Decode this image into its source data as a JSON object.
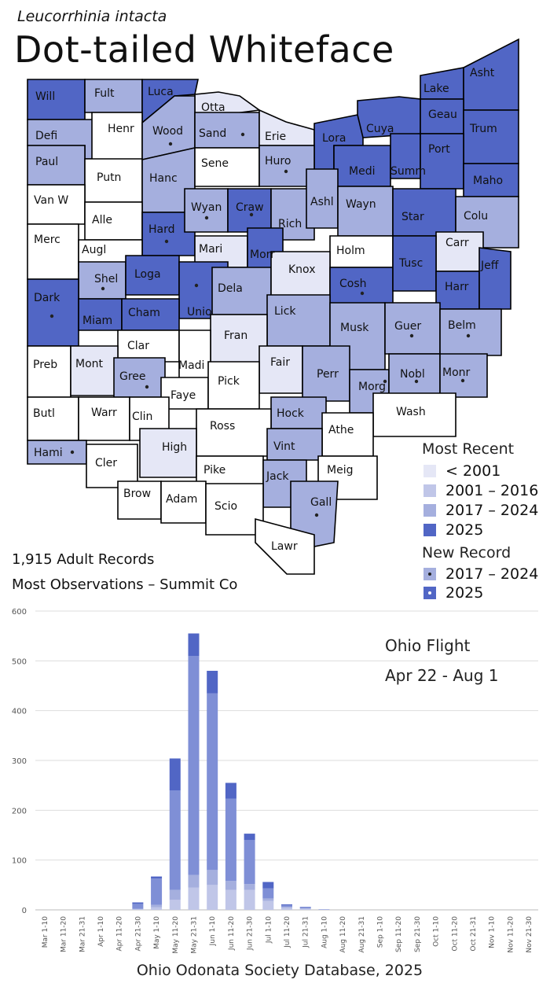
{
  "header": {
    "scientific_name": "Leucorrhinia intacta",
    "common_name": "Dot-tailed Whiteface"
  },
  "colors": {
    "lt2001": "#e5e7f6",
    "y2001_2016": "#c0c6e8",
    "y2017_2024": "#a5afde",
    "y2025": "#5166c5",
    "none": "#ffffff",
    "border": "#000000"
  },
  "counties": [
    {
      "name": "Will",
      "cat": "2025",
      "dot": false
    },
    {
      "name": "Fult",
      "cat": "2017-2024",
      "dot": false
    },
    {
      "name": "Luca",
      "cat": "2025",
      "dot": false
    },
    {
      "name": "Otta",
      "cat": "<2001",
      "dot": false
    },
    {
      "name": "Defi",
      "cat": "2017-2024",
      "dot": false
    },
    {
      "name": "Henr",
      "cat": "none",
      "dot": false
    },
    {
      "name": "Wood",
      "cat": "2017-2024",
      "dot": true
    },
    {
      "name": "Sand",
      "cat": "2017-2024",
      "dot": true
    },
    {
      "name": "Erie",
      "cat": "<2001",
      "dot": false
    },
    {
      "name": "Lora",
      "cat": "2025",
      "dot": false
    },
    {
      "name": "Cuya",
      "cat": "2025",
      "dot": false
    },
    {
      "name": "Lake",
      "cat": "2025",
      "dot": false
    },
    {
      "name": "Asht",
      "cat": "2025",
      "dot": false
    },
    {
      "name": "Geau",
      "cat": "2025",
      "dot": false
    },
    {
      "name": "Trum",
      "cat": "2025",
      "dot": false
    },
    {
      "name": "Paul",
      "cat": "2017-2024",
      "dot": false
    },
    {
      "name": "Putn",
      "cat": "none",
      "dot": false
    },
    {
      "name": "Hanc",
      "cat": "2017-2024",
      "dot": false
    },
    {
      "name": "Sene",
      "cat": "none",
      "dot": false
    },
    {
      "name": "Huro",
      "cat": "2017-2024",
      "dot": true
    },
    {
      "name": "Medi",
      "cat": "2025",
      "dot": false
    },
    {
      "name": "Summ",
      "cat": "2025",
      "dot": false
    },
    {
      "name": "Port",
      "cat": "2025",
      "dot": false
    },
    {
      "name": "Maho",
      "cat": "2025",
      "dot": false
    },
    {
      "name": "Van W",
      "cat": "none",
      "dot": false
    },
    {
      "name": "Alle",
      "cat": "none",
      "dot": false
    },
    {
      "name": "Hard",
      "cat": "2025",
      "dot": true
    },
    {
      "name": "Wyan",
      "cat": "2017-2024",
      "dot": true
    },
    {
      "name": "Craw",
      "cat": "2025",
      "dot": true
    },
    {
      "name": "Rich",
      "cat": "2017-2024",
      "dot": false
    },
    {
      "name": "Ashl",
      "cat": "2017-2024",
      "dot": false
    },
    {
      "name": "Wayn",
      "cat": "2017-2024",
      "dot": false
    },
    {
      "name": "Star",
      "cat": "2025",
      "dot": false
    },
    {
      "name": "Colu",
      "cat": "2017-2024",
      "dot": false
    },
    {
      "name": "Merc",
      "cat": "none",
      "dot": false
    },
    {
      "name": "Augl",
      "cat": "none",
      "dot": false
    },
    {
      "name": "Mari",
      "cat": "<2001",
      "dot": false
    },
    {
      "name": "Morr",
      "cat": "2025",
      "dot": false
    },
    {
      "name": "Holm",
      "cat": "none",
      "dot": false
    },
    {
      "name": "Carr",
      "cat": "<2001",
      "dot": false
    },
    {
      "name": "Shel",
      "cat": "2017-2024",
      "dot": true
    },
    {
      "name": "Loga",
      "cat": "2025",
      "dot": false
    },
    {
      "name": "Unio",
      "cat": "2025",
      "dot": true
    },
    {
      "name": "Dela",
      "cat": "2017-2024",
      "dot": false
    },
    {
      "name": "Knox",
      "cat": "<2001",
      "dot": false
    },
    {
      "name": "Cosh",
      "cat": "2025",
      "dot": true
    },
    {
      "name": "Tusc",
      "cat": "2025",
      "dot": false
    },
    {
      "name": "Harr",
      "cat": "2025",
      "dot": false
    },
    {
      "name": "Jeff",
      "cat": "2025",
      "dot": false
    },
    {
      "name": "Dark",
      "cat": "2025",
      "dot": true
    },
    {
      "name": "Miam",
      "cat": "2025",
      "dot": false
    },
    {
      "name": "Cham",
      "cat": "2025",
      "dot": false
    },
    {
      "name": "Lick",
      "cat": "2017-2024",
      "dot": false
    },
    {
      "name": "Fran",
      "cat": "<2001",
      "dot": false
    },
    {
      "name": "Musk",
      "cat": "2017-2024",
      "dot": false
    },
    {
      "name": "Guer",
      "cat": "2017-2024",
      "dot": true
    },
    {
      "name": "Belm",
      "cat": "2017-2024",
      "dot": true
    },
    {
      "name": "Clar",
      "cat": "none",
      "dot": false
    },
    {
      "name": "Preb",
      "cat": "none",
      "dot": false
    },
    {
      "name": "Mont",
      "cat": "<2001",
      "dot": false
    },
    {
      "name": "Gree",
      "cat": "2017-2024",
      "dot": true
    },
    {
      "name": "Madi",
      "cat": "none",
      "dot": false
    },
    {
      "name": "Fair",
      "cat": "<2001",
      "dot": false
    },
    {
      "name": "Perr",
      "cat": "2017-2024",
      "dot": false
    },
    {
      "name": "Morg",
      "cat": "2017-2024",
      "dot": true
    },
    {
      "name": "Nobl",
      "cat": "2017-2024",
      "dot": true
    },
    {
      "name": "Monr",
      "cat": "2017-2024",
      "dot": true
    },
    {
      "name": "Faye",
      "cat": "none",
      "dot": false
    },
    {
      "name": "Pick",
      "cat": "none",
      "dot": false
    },
    {
      "name": "Butl",
      "cat": "none",
      "dot": false
    },
    {
      "name": "Warr",
      "cat": "none",
      "dot": false
    },
    {
      "name": "Clin",
      "cat": "none",
      "dot": false
    },
    {
      "name": "Hock",
      "cat": "2017-2024",
      "dot": false
    },
    {
      "name": "Wash",
      "cat": "none",
      "dot": false
    },
    {
      "name": "Ross",
      "cat": "none",
      "dot": false
    },
    {
      "name": "Athe",
      "cat": "none",
      "dot": false
    },
    {
      "name": "Vint",
      "cat": "2017-2024",
      "dot": false
    },
    {
      "name": "Hami",
      "cat": "2017-2024",
      "dot": true
    },
    {
      "name": "Cler",
      "cat": "none",
      "dot": false
    },
    {
      "name": "High",
      "cat": "<2001",
      "dot": false
    },
    {
      "name": "Pike",
      "cat": "none",
      "dot": false
    },
    {
      "name": "Jack",
      "cat": "2017-2024",
      "dot": false
    },
    {
      "name": "Meig",
      "cat": "none",
      "dot": false
    },
    {
      "name": "Brow",
      "cat": "none",
      "dot": false
    },
    {
      "name": "Adam",
      "cat": "none",
      "dot": false
    },
    {
      "name": "Scio",
      "cat": "none",
      "dot": false
    },
    {
      "name": "Gall",
      "cat": "2017-2024",
      "dot": true
    },
    {
      "name": "Lawr",
      "cat": "none",
      "dot": false
    }
  ],
  "legend": {
    "most_recent_title": "Most Recent",
    "items": [
      {
        "label": "< 2001",
        "color": "#e5e7f6"
      },
      {
        "label": "2001 – 2016",
        "color": "#c0c6e8"
      },
      {
        "label": "2017 – 2024",
        "color": "#a5afde"
      },
      {
        "label": "2025",
        "color": "#5166c5"
      }
    ],
    "new_record_title": "New Record",
    "new_record_items": [
      {
        "label": "2017 – 2024",
        "color": "#a5afde"
      },
      {
        "label": "2025",
        "color": "#5166c5"
      }
    ]
  },
  "stats": {
    "records": "1,915  Adult Records",
    "most_observations": "Most Observations – Summit Co"
  },
  "chart_data": {
    "type": "bar",
    "stacked": true,
    "title": "Ohio Flight",
    "subtitle": "Apr 22 - Aug 1",
    "xlabel": "Ohio Odonata Society Database, 2025",
    "ylim": [
      0,
      600
    ],
    "yticks": [
      0,
      100,
      200,
      300,
      400,
      500,
      600
    ],
    "grid": true,
    "categories": [
      "Mar 1-10",
      "Mar 11-20",
      "Mar 21-31",
      "Apr 1-10",
      "Apr 11-20",
      "Apr 21-30",
      "May 1-10",
      "May 11-20",
      "May 21-31",
      "Jun 1-10",
      "Jun 11-20",
      "Jun 21-30",
      "Jul 1-10",
      "Jul 11-20",
      "Jul 21-31",
      "Aug 1-10",
      "Aug 11-20",
      "Aug 21-31",
      "Sep 1-10",
      "Sep 11-20",
      "Sep 21-30",
      "Oct 1-10",
      "Oct 11-20",
      "Oct 21-31",
      "Nov 1-10",
      "Nov 11-20",
      "Nov 21-30"
    ],
    "series": [
      {
        "color": "#c0c6e8",
        "values": [
          0,
          0,
          0,
          0,
          0,
          1,
          5,
          20,
          45,
          50,
          40,
          40,
          18,
          4,
          2,
          0,
          0,
          0,
          0,
          0,
          0,
          0,
          0,
          0,
          0,
          0,
          0
        ]
      },
      {
        "color": "#a5afde",
        "values": [
          0,
          0,
          0,
          0,
          0,
          1,
          5,
          20,
          25,
          30,
          18,
          12,
          5,
          2,
          1,
          0,
          0,
          0,
          0,
          0,
          0,
          0,
          0,
          0,
          0,
          0,
          0
        ]
      },
      {
        "color": "#7f8fd6",
        "values": [
          0,
          0,
          0,
          0,
          0,
          10,
          53,
          200,
          440,
          355,
          165,
          88,
          20,
          3,
          2,
          1,
          0,
          0,
          0,
          0,
          0,
          0,
          0,
          0,
          0,
          0,
          0
        ]
      },
      {
        "color": "#5166c5",
        "values": [
          0,
          0,
          0,
          0,
          0,
          3,
          4,
          64,
          45,
          45,
          32,
          13,
          13,
          2,
          1,
          0,
          0,
          0,
          0,
          0,
          0,
          0,
          0,
          0,
          0,
          0,
          0
        ]
      }
    ]
  }
}
